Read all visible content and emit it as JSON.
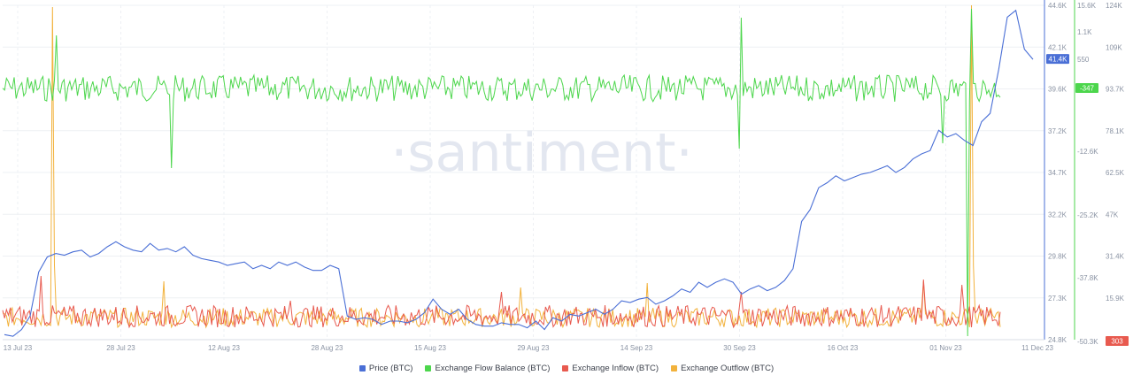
{
  "watermark": "·santiment·",
  "chart_data": {
    "type": "line",
    "x_ticks": [
      "13 Jul 23",
      "28 Jul 23",
      "12 Aug 23",
      "28 Aug 23",
      "15 Aug 23",
      "29 Aug 23",
      "14 Sep 23",
      "30 Sep 23",
      "16 Oct 23",
      "01 Nov 23",
      "11 Dec 23"
    ],
    "axes": {
      "price": {
        "ticks": [
          "44.6K",
          "42.1K",
          "39.6K",
          "37.2K",
          "34.7K",
          "32.2K",
          "29.8K",
          "27.3K",
          "24.8K"
        ],
        "range": [
          24800,
          44600
        ],
        "current": "41.4K",
        "current_value": 41400,
        "color": "#4a6fd6"
      },
      "balance": {
        "ticks": [
          "15.6K",
          "1.1K",
          "550",
          "-347",
          "-12.6K",
          "-25.2K",
          "-37.8K",
          "-50.3K"
        ],
        "current": "-347",
        "color": "#4cd64c"
      },
      "flows": {
        "ticks": [
          "124K",
          "109K",
          "93.7K",
          "78.1K",
          "62.5K",
          "47K",
          "31.4K",
          "15.9K",
          "303"
        ],
        "current": "303",
        "color": "#e85a4f"
      }
    },
    "series": [
      {
        "name": "Price (BTC)",
        "color": "#4a6fd6"
      },
      {
        "name": "Exchange Flow Balance (BTC)",
        "color": "#4cd64c"
      },
      {
        "name": "Exchange Inflow (BTC)",
        "color": "#e85a4f"
      },
      {
        "name": "Exchange Outflow (BTC)",
        "color": "#f2b23c"
      }
    ],
    "price_values": [
      25100,
      25000,
      25400,
      26200,
      28800,
      29700,
      29900,
      29800,
      30000,
      30100,
      29700,
      29900,
      30300,
      30600,
      30300,
      30100,
      30000,
      30500,
      30100,
      30200,
      30000,
      30300,
      29800,
      29600,
      29500,
      29400,
      29200,
      29300,
      29400,
      29000,
      29200,
      29000,
      29400,
      29200,
      29400,
      29100,
      28900,
      28900,
      29200,
      29000,
      26200,
      26000,
      26100,
      26000,
      25700,
      25900,
      25900,
      25800,
      26000,
      26400,
      27200,
      26600,
      26300,
      26600,
      26000,
      25700,
      25600,
      25600,
      25800,
      25700,
      25700,
      25500,
      25900,
      25400,
      26100,
      25900,
      26300,
      26200,
      26400,
      26600,
      26300,
      26600,
      27100,
      27000,
      27200,
      27300,
      26900,
      27100,
      27400,
      27800,
      27600,
      28200,
      27900,
      28200,
      28400,
      28200,
      27500,
      27800,
      28000,
      27700,
      27900,
      28300,
      29000,
      31800,
      32500,
      33800,
      34100,
      34500,
      34200,
      34400,
      34600,
      34700,
      34900,
      35100,
      34700,
      35000,
      35500,
      35800,
      36000,
      37200,
      36800,
      37000,
      36600,
      36300,
      37700,
      38200,
      40800,
      43900,
      44300,
      42000,
      41400
    ],
    "balance_note": "oscillating around -347 with spikes",
    "flow_note": "inflow and outflow noisy near baseline with large spikes"
  }
}
